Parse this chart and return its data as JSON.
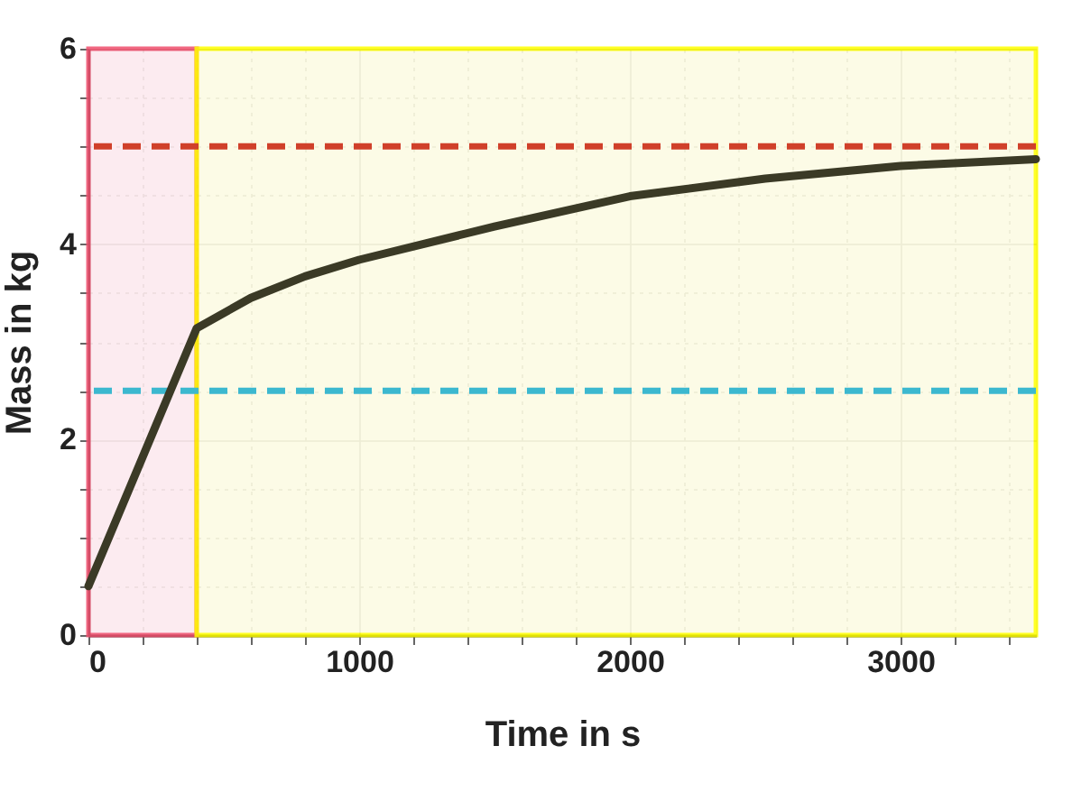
{
  "chart_data": {
    "type": "line",
    "xlabel": "Time in s",
    "ylabel": "Mass in kg",
    "x": [
      0,
      400,
      600,
      800,
      1000,
      1500,
      2000,
      2500,
      3000,
      3500
    ],
    "series": [
      {
        "color": "#3b3a26",
        "values": [
          0.5,
          3.14,
          3.45,
          3.67,
          3.84,
          4.18,
          4.49,
          4.67,
          4.8,
          4.87
        ]
      }
    ],
    "xlim": [
      0,
      3500
    ],
    "ylim": [
      0,
      6
    ],
    "xticks": [
      0,
      {
        "value": 200,
        "label": null
      },
      {
        "value": 400,
        "label": null
      },
      {
        "value": 600,
        "label": null
      },
      {
        "value": 800,
        "label": null
      },
      1000,
      {
        "value": 1200,
        "label": null
      },
      {
        "value": 1400,
        "label": null
      },
      {
        "value": 1600,
        "label": null
      },
      {
        "value": 1800,
        "label": null
      },
      2000,
      {
        "value": 2200,
        "label": null
      },
      {
        "value": 2400,
        "label": null
      },
      {
        "value": 2600,
        "label": null
      },
      {
        "value": 2800,
        "label": null
      },
      3000,
      {
        "value": 3200,
        "label": null
      },
      {
        "value": 3400,
        "label": null
      }
    ],
    "yticks": [
      0,
      {
        "value": 0.5,
        "label": null
      },
      {
        "value": 1,
        "label": null
      },
      {
        "value": 1.5,
        "label": null
      },
      2,
      {
        "value": 2.5,
        "label": null
      },
      {
        "value": 3,
        "label": null
      },
      {
        "value": 3.5,
        "label": null
      },
      4,
      {
        "value": 4.5,
        "label": null
      },
      {
        "value": 5,
        "label": null
      },
      {
        "value": 5.5,
        "label": null
      },
      6
    ],
    "grid": true,
    "marker": "none",
    "line_style": "solid",
    "ref_lines": [
      {
        "axis": "y",
        "value": 5,
        "color": "#d0402a",
        "line_style": "dashed"
      },
      {
        "axis": "y",
        "value": 2.5,
        "color": "#3cb8cf",
        "line_style": "dashed"
      }
    ],
    "bands": [
      {
        "axis": "x",
        "from": 0,
        "to": 400,
        "color": "#fce8ee"
      },
      {
        "axis": "x",
        "from": 400,
        "to": 3500,
        "color": "#fcfbe2"
      }
    ]
  }
}
